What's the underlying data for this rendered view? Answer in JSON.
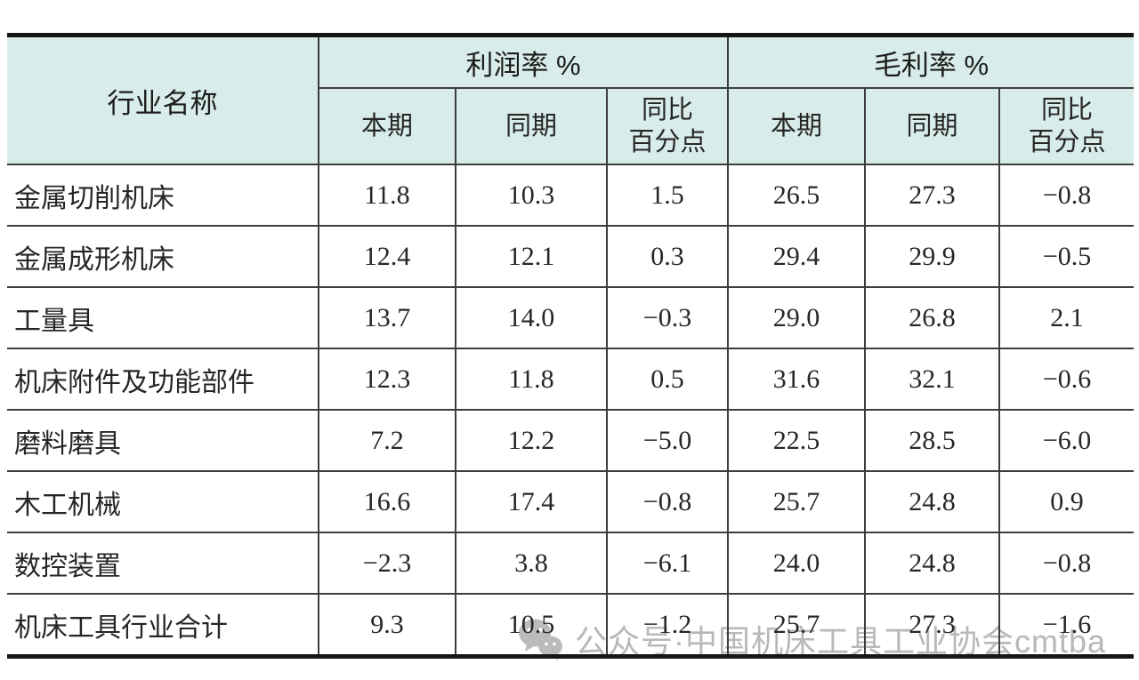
{
  "table": {
    "header": {
      "industry_col": "行业名称",
      "groups": [
        {
          "label": "利润率 %"
        },
        {
          "label": "毛利率 %"
        }
      ],
      "subheaders": [
        "本期",
        "同期",
        "同比\n百分点",
        "本期",
        "同期",
        "同比\n百分点"
      ]
    },
    "rows": [
      {
        "name": "金属切削机床",
        "cells": [
          "11.8",
          "10.3",
          "1.5",
          "26.5",
          "27.3",
          "−0.8"
        ]
      },
      {
        "name": "金属成形机床",
        "cells": [
          "12.4",
          "12.1",
          "0.3",
          "29.4",
          "29.9",
          "−0.5"
        ]
      },
      {
        "name": "工量具",
        "cells": [
          "13.7",
          "14.0",
          "−0.3",
          "29.0",
          "26.8",
          "2.1"
        ]
      },
      {
        "name": "机床附件及功能部件",
        "cells": [
          "12.3",
          "11.8",
          "0.5",
          "31.6",
          "32.1",
          "−0.6"
        ]
      },
      {
        "name": "磨料磨具",
        "cells": [
          "7.2",
          "12.2",
          "−5.0",
          "22.5",
          "28.5",
          "−6.0"
        ]
      },
      {
        "name": "木工机械",
        "cells": [
          "16.6",
          "17.4",
          "−0.8",
          "25.7",
          "24.8",
          "0.9"
        ]
      },
      {
        "name": "数控装置",
        "cells": [
          "−2.3",
          "3.8",
          "−6.1",
          "24.0",
          "24.8",
          "−0.8"
        ]
      },
      {
        "name": "机床工具行业合计",
        "cells": [
          "9.3",
          "10.5",
          "−1.2",
          "25.7",
          "27.3",
          "−1.6"
        ]
      }
    ]
  },
  "watermark": {
    "icon": "wechat-icon",
    "text": "公众号·中国机床工具工业协会cmtba"
  },
  "colors": {
    "header_bg": "#d8ece9",
    "grid_line": "#3d3d3d",
    "heavy_border": "#161616",
    "text": "#262626",
    "watermark": "#b2b2b2"
  },
  "chart_data": {
    "type": "table",
    "title": "",
    "column_groups": [
      "利润率 %",
      "毛利率 %"
    ],
    "columns": [
      "行业名称",
      "利润率% 本期",
      "利润率% 同期",
      "利润率% 同比百分点",
      "毛利率% 本期",
      "毛利率% 同期",
      "毛利率% 同比百分点"
    ],
    "rows": [
      [
        "金属切削机床",
        11.8,
        10.3,
        1.5,
        26.5,
        27.3,
        -0.8
      ],
      [
        "金属成形机床",
        12.4,
        12.1,
        0.3,
        29.4,
        29.9,
        -0.5
      ],
      [
        "工量具",
        13.7,
        14.0,
        -0.3,
        29.0,
        26.8,
        2.1
      ],
      [
        "机床附件及功能部件",
        12.3,
        11.8,
        0.5,
        31.6,
        32.1,
        -0.6
      ],
      [
        "磨料磨具",
        7.2,
        12.2,
        -5.0,
        22.5,
        28.5,
        -6.0
      ],
      [
        "木工机械",
        16.6,
        17.4,
        -0.8,
        25.7,
        24.8,
        0.9
      ],
      [
        "数控装置",
        -2.3,
        3.8,
        -6.1,
        24.0,
        24.8,
        -0.8
      ],
      [
        "机床工具行业合计",
        9.3,
        10.5,
        -1.2,
        25.7,
        27.3,
        -1.6
      ]
    ]
  }
}
